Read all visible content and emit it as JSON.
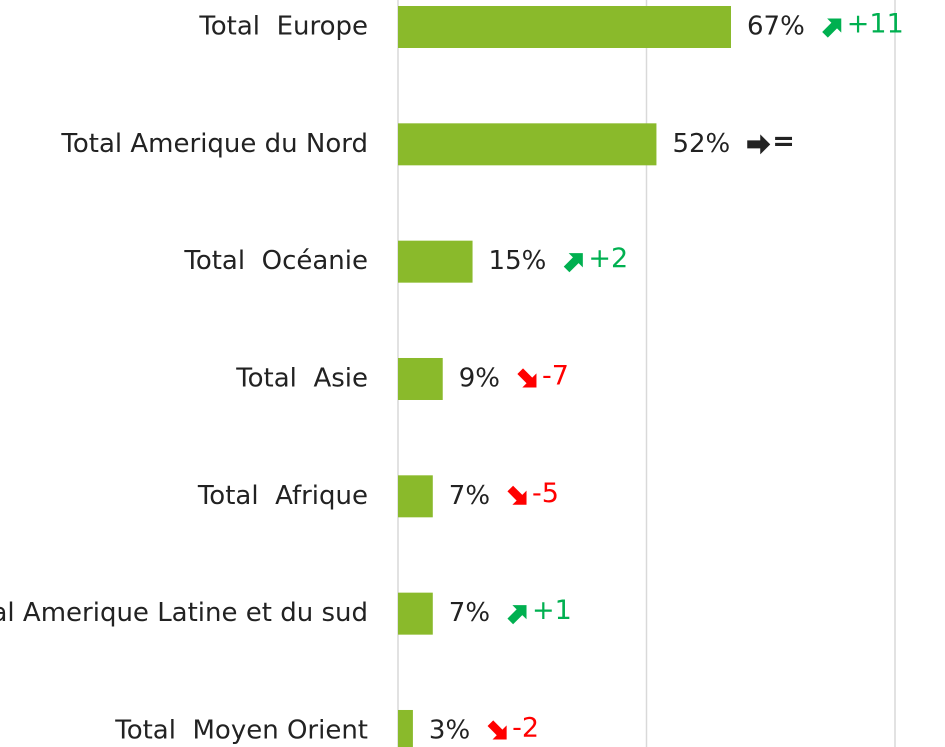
{
  "chart_data": {
    "type": "bar",
    "orientation": "horizontal",
    "categories": [
      "Total  Europe",
      "Total Amerique du Nord",
      "Total  Océanie",
      "Total  Asie",
      "Total  Afrique",
      "Total Amerique Latine et du sud",
      "Total  Moyen Orient"
    ],
    "values": [
      67,
      52,
      15,
      9,
      7,
      7,
      3
    ],
    "value_labels": [
      "67%",
      "52%",
      "15%",
      "9%",
      "7%",
      "7%",
      "3%"
    ],
    "changes": [
      11,
      0,
      2,
      -7,
      -5,
      1,
      -2
    ],
    "change_labels": [
      "+11",
      "=",
      "+2",
      "-7",
      "-5",
      "+1",
      "-2"
    ],
    "color": "#8aba2b",
    "up_color": "#00b050",
    "down_color": "#ff0000",
    "flat_color": "#222222",
    "xlim": [
      0,
      100
    ],
    "xticks": [
      0,
      50,
      100
    ],
    "grid": true
  }
}
